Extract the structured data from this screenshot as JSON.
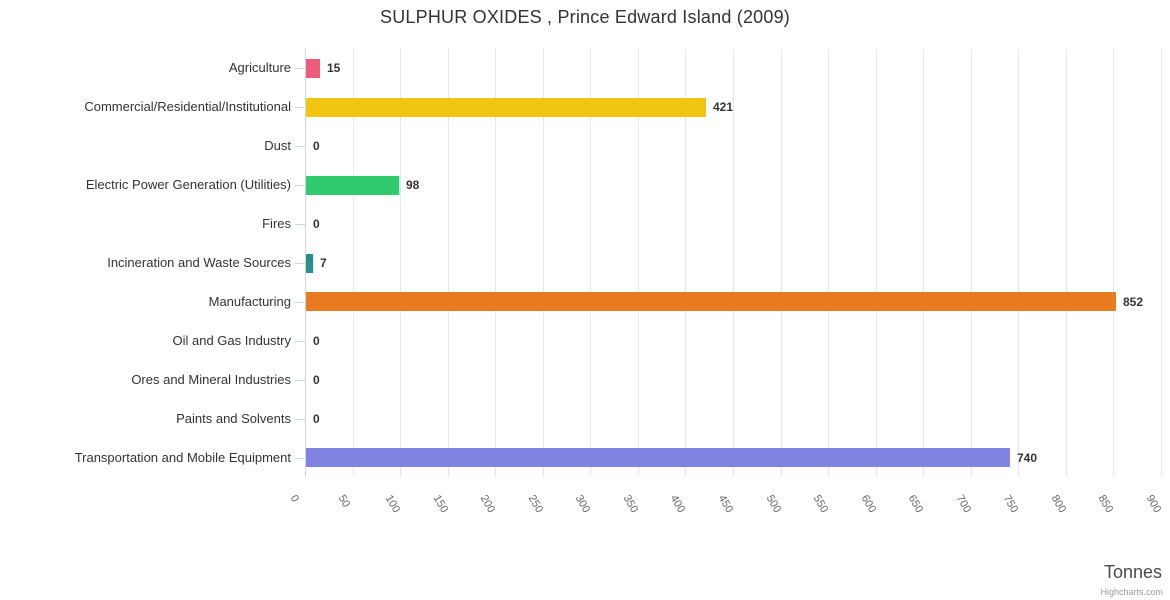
{
  "header": {
    "title": "SULPHUR OXIDES , Prince Edward Island (2009)"
  },
  "chart_data": {
    "type": "bar",
    "orientation": "horizontal",
    "title": "SULPHUR OXIDES , Prince Edward Island (2009)",
    "xlabel": "Tonnes",
    "ylabel": "",
    "xlim": [
      0,
      900
    ],
    "x_ticks": [
      0,
      50,
      100,
      150,
      200,
      250,
      300,
      350,
      400,
      450,
      500,
      550,
      600,
      650,
      700,
      750,
      800,
      850,
      900
    ],
    "grid": true,
    "legend": false,
    "categories": [
      "Agriculture",
      "Commercial/Residential/Institutional",
      "Dust",
      "Electric Power Generation (Utilities)",
      "Fires",
      "Incineration and Waste Sources",
      "Manufacturing",
      "Oil and Gas Industry",
      "Ores and Mineral Industries",
      "Paints and Solvents",
      "Transportation and Mobile Equipment"
    ],
    "values": [
      15,
      421,
      0,
      98,
      0,
      7,
      852,
      0,
      0,
      0,
      740
    ],
    "data_labels": [
      "15",
      "421",
      "0",
      "98",
      "0",
      "7",
      "852",
      "0",
      "0",
      "0",
      "740"
    ],
    "bar_colors": [
      "#ed5c7a",
      "#f0c512",
      null,
      "#31ca6e",
      null,
      "#2a8f8c",
      "#e87a1f",
      null,
      null,
      null,
      "#8083e1"
    ]
  },
  "credit": "Highcharts.com",
  "colors": {
    "background": "#ffffff",
    "grid_line": "#e6e6e6",
    "axis_line": "#ccd6eb",
    "title_text": "#333333",
    "category_label_text": "#333333",
    "tick_label_text": "#666666",
    "axis_title_text": "#4a4a4a",
    "credit_text": "#999999"
  }
}
